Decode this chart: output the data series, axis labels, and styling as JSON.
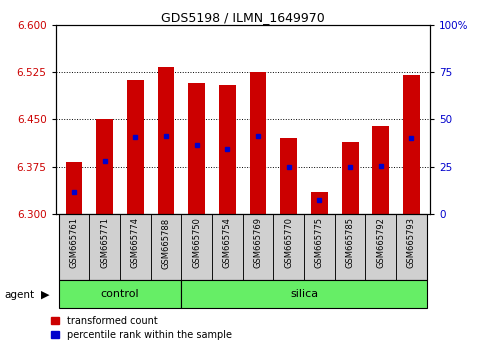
{
  "title": "GDS5198 / ILMN_1649970",
  "samples": [
    "GSM665761",
    "GSM665771",
    "GSM665774",
    "GSM665788",
    "GSM665750",
    "GSM665754",
    "GSM665769",
    "GSM665770",
    "GSM665775",
    "GSM665785",
    "GSM665792",
    "GSM665793"
  ],
  "bar_tops": [
    6.383,
    6.45,
    6.513,
    6.533,
    6.507,
    6.505,
    6.525,
    6.42,
    6.335,
    6.415,
    6.44,
    6.52
  ],
  "percentile_values": [
    6.335,
    6.385,
    6.422,
    6.424,
    6.41,
    6.403,
    6.424,
    6.375,
    6.323,
    6.375,
    6.377,
    6.42
  ],
  "bar_bottom": 6.3,
  "ylim": [
    6.3,
    6.6
  ],
  "yticks": [
    6.3,
    6.375,
    6.45,
    6.525,
    6.6
  ],
  "right_ytick_pcts": [
    0,
    25,
    50,
    75,
    100
  ],
  "right_ytick_labels": [
    "0",
    "25",
    "50",
    "75",
    "100%"
  ],
  "bar_color": "#CC0000",
  "percentile_color": "#0000CC",
  "bar_width": 0.55,
  "title_fontsize": 9,
  "tick_fontsize": 7.5,
  "sample_fontsize": 6,
  "legend_fontsize": 7,
  "agent_fontsize": 7.5,
  "group_fontsize": 8,
  "left_tick_color": "#CC0000",
  "right_tick_color": "#0000CC",
  "cell_color": "#D0D0D0",
  "group_color": "#66EE66",
  "legend_red": "transformed count",
  "legend_blue": "percentile rank within the sample",
  "agent_label": "agent",
  "control_label": "control",
  "silica_label": "silica",
  "n_control": 4,
  "n_silica": 8
}
